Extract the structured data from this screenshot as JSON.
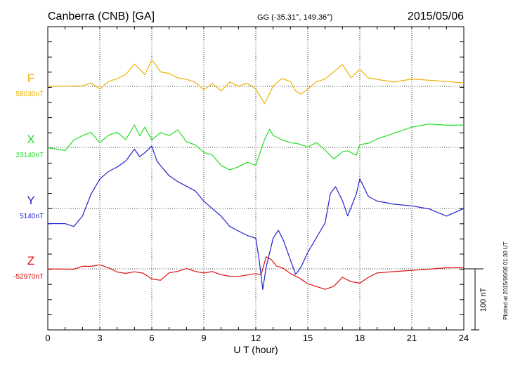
{
  "header": {
    "station": "Canberra (CNB)  [GA]",
    "coords": "GG (-35.31°, 149.36°)",
    "date": "2015/05/06"
  },
  "footer": {
    "plotted": "Plotted at 2015/06/06 01:30 UT"
  },
  "chart_data": {
    "type": "line",
    "xlabel": "U T (hour)",
    "xlim": [
      0,
      24
    ],
    "xticks": [
      "0",
      "3",
      "6",
      "9",
      "12",
      "15",
      "18",
      "21",
      "24"
    ],
    "grid": true,
    "scale_bar": {
      "label": "100 nT",
      "nT": 100
    },
    "series": [
      {
        "name": "F",
        "baseline_label": "58030nT",
        "color": "#f0b000",
        "x": [
          0,
          1,
          2,
          2.5,
          3,
          3.5,
          4,
          4.5,
          5,
          5.3,
          5.6,
          6,
          6.2,
          6.5,
          7,
          7.5,
          8,
          8.5,
          9,
          9.5,
          10,
          10.5,
          11,
          11.5,
          12,
          12.3,
          12.5,
          12.8,
          13,
          13.5,
          14,
          14.3,
          14.6,
          15,
          15.5,
          16,
          16.5,
          17,
          17.5,
          18,
          18.5,
          19,
          20,
          21,
          22,
          23,
          24
        ],
        "y": [
          0,
          0,
          0,
          2,
          -2,
          3,
          5,
          8,
          15,
          12,
          8,
          18,
          15,
          10,
          9,
          6,
          5,
          3,
          -2,
          2,
          -3,
          3,
          0,
          2,
          -2,
          -8,
          -12,
          -5,
          0,
          5,
          3,
          -3,
          -5,
          -2,
          3,
          5,
          10,
          15,
          6,
          12,
          6,
          5,
          3,
          5,
          4,
          3,
          2
        ]
      },
      {
        "name": "X",
        "baseline_label": "23140nT",
        "color": "#22dd22",
        "x": [
          0,
          1,
          1.5,
          2,
          2.5,
          3,
          3.5,
          4,
          4.5,
          5,
          5.3,
          5.6,
          6,
          6.5,
          7,
          7.5,
          8,
          8.5,
          9,
          9.5,
          10,
          10.5,
          11,
          11.5,
          12,
          12.2,
          12.5,
          12.8,
          13,
          13.5,
          14,
          14.5,
          15,
          15.5,
          16,
          16.5,
          17,
          17.3,
          17.8,
          18,
          18.5,
          19,
          20,
          21,
          22,
          23,
          24
        ],
        "y": [
          0,
          -2,
          5,
          8,
          10,
          3,
          8,
          10,
          5,
          15,
          8,
          14,
          5,
          10,
          8,
          12,
          4,
          2,
          -3,
          -5,
          -12,
          -15,
          -13,
          -10,
          -12,
          -5,
          5,
          12,
          8,
          5,
          3,
          2,
          0,
          3,
          -2,
          -8,
          -3,
          -2,
          -5,
          2,
          3,
          6,
          10,
          14,
          16,
          15,
          15
        ]
      },
      {
        "name": "Y",
        "baseline_label": "5140nT",
        "color": "#2222cc",
        "x": [
          0,
          1,
          1.5,
          1.8,
          2,
          2.5,
          3,
          3.5,
          4,
          4.5,
          5,
          5.3,
          5.6,
          6,
          6.3,
          6.6,
          7,
          7.5,
          8,
          8.5,
          9,
          9.5,
          10,
          10.5,
          11,
          11.5,
          12,
          12.2,
          12.4,
          12.6,
          13,
          13.3,
          13.6,
          14,
          14.3,
          14.6,
          15,
          15.5,
          16,
          16.3,
          16.6,
          17,
          17.3,
          17.8,
          18,
          18.5,
          19,
          20,
          21,
          22,
          23,
          24
        ],
        "y": [
          -10,
          -10,
          -12,
          -8,
          -5,
          10,
          20,
          25,
          28,
          32,
          40,
          35,
          38,
          42,
          32,
          28,
          22,
          18,
          15,
          12,
          5,
          0,
          -5,
          -12,
          -15,
          -18,
          -20,
          -35,
          -55,
          -40,
          -20,
          -15,
          -22,
          -35,
          -45,
          -40,
          -30,
          -20,
          -10,
          10,
          15,
          5,
          -5,
          10,
          20,
          8,
          5,
          3,
          2,
          0,
          -5,
          0
        ]
      },
      {
        "name": "Z",
        "baseline_label": "-52970nT",
        "color": "#dd1111",
        "x": [
          0,
          1,
          1.5,
          2,
          2.5,
          3,
          3.5,
          4,
          4.5,
          5,
          5.5,
          6,
          6.5,
          7,
          7.5,
          8,
          8.5,
          9,
          9.5,
          10,
          10.5,
          11,
          11.5,
          12,
          12.3,
          12.6,
          12.9,
          13.2,
          13.6,
          14,
          14.5,
          15,
          15.5,
          16,
          16.5,
          17,
          17.5,
          18,
          18.5,
          19,
          20,
          21,
          22,
          23,
          24
        ],
        "y": [
          0,
          0,
          0,
          2,
          2,
          3,
          1,
          -2,
          -3,
          -2,
          -3,
          -7,
          -8,
          -3,
          -2,
          0,
          -2,
          -3,
          -2,
          -4,
          -5,
          -5,
          -4,
          -3,
          -4,
          8,
          6,
          2,
          0,
          -3,
          -6,
          -10,
          -12,
          -14,
          -12,
          -6,
          -9,
          -10,
          -6,
          -3,
          -2,
          -1,
          0,
          1,
          1
        ]
      }
    ]
  }
}
